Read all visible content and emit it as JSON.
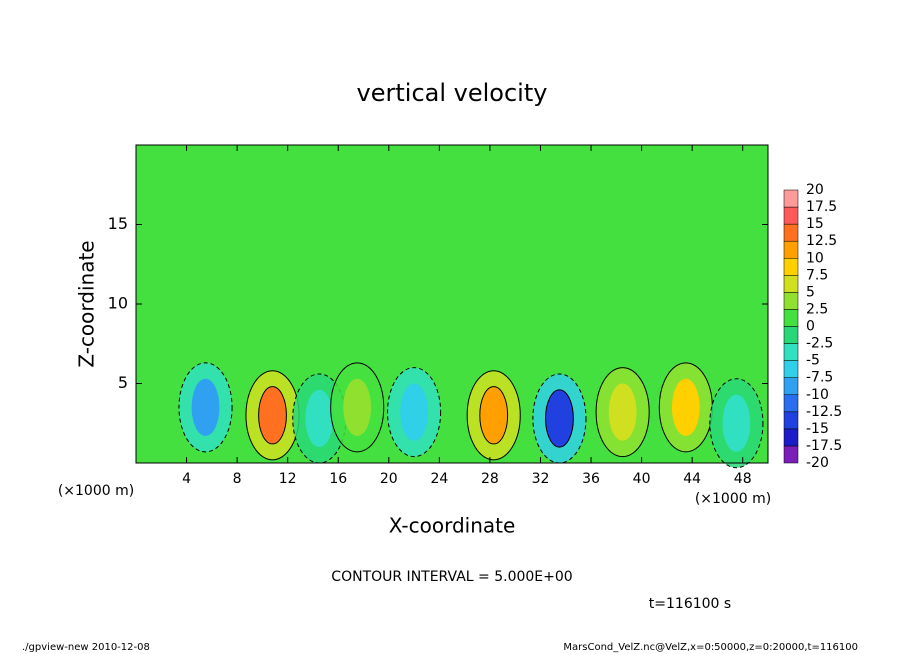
{
  "chart_data": {
    "type": "contour",
    "title": "vertical velocity",
    "x_label": "X-coordinate",
    "y_label": "Z-coordinate",
    "x_unit": "(×1000 m)",
    "x_unit_right": "(×1000 m)",
    "contour_interval": "CONTOUR INTERVAL = 5.000E+00",
    "time_label": "t=116100 s",
    "footer_left": "./gpview-new  2010-12-08",
    "footer_right": "MarsCond_VelZ.nc@VelZ,x=0:50000,z=0:20000,t=116100",
    "xlim": [
      0,
      50
    ],
    "ylim": [
      0,
      20
    ],
    "xticks": [
      4,
      8,
      12,
      16,
      20,
      24,
      28,
      32,
      36,
      40,
      44,
      48
    ],
    "yticks": [
      5,
      10,
      15
    ],
    "levels": [
      -20,
      -17.5,
      -15,
      -12.5,
      -10,
      -7.5,
      -5,
      -2.5,
      0,
      2.5,
      5,
      7.5,
      10,
      12.5,
      15,
      17.5,
      20
    ],
    "colors": [
      "#7a1fb8",
      "#1c1cc8",
      "#2040e0",
      "#2a6ef0",
      "#30a0f0",
      "#30d0e8",
      "#30e0c0",
      "#28d878",
      "#44e040",
      "#90e030",
      "#d0e020",
      "#ffd000",
      "#ffa000",
      "#ff7020",
      "#ff5a5a",
      "#ff9a9a"
    ],
    "cells": [
      {
        "x": 5.5,
        "z": 3.5,
        "value": -8
      },
      {
        "x": 10.8,
        "z": 3,
        "value": 13
      },
      {
        "x": 14.5,
        "z": 2.8,
        "value": -5
      },
      {
        "x": 17.5,
        "z": 3.5,
        "value": 4
      },
      {
        "x": 22,
        "z": 3.2,
        "value": -6
      },
      {
        "x": 28.3,
        "z": 3,
        "value": 11
      },
      {
        "x": 33.5,
        "z": 2.8,
        "value": -13
      },
      {
        "x": 38.5,
        "z": 3.2,
        "value": 6
      },
      {
        "x": 43.5,
        "z": 3.5,
        "value": 9
      },
      {
        "x": 47.5,
        "z": 2.5,
        "value": -4
      }
    ]
  }
}
